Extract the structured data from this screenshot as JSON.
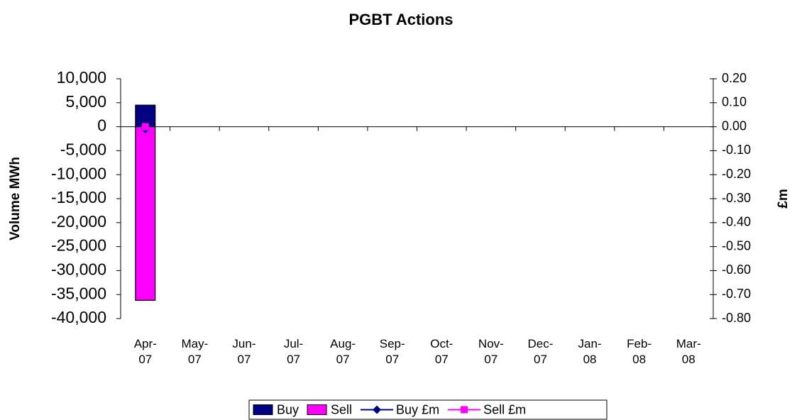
{
  "chart_data": {
    "type": "bar",
    "title": "PGBT Actions",
    "y_label": "Volume MWh",
    "y2_label": "£m",
    "categories": [
      "Apr-07",
      "May-07",
      "Jun-07",
      "Jul-07",
      "Aug-07",
      "Sep-07",
      "Oct-07",
      "Nov-07",
      "Dec-07",
      "Jan-08",
      "Feb-08",
      "Mar-08"
    ],
    "series": [
      {
        "name": "Buy",
        "type": "bar",
        "color": "#000080",
        "values": [
          4500,
          null,
          null,
          null,
          null,
          null,
          null,
          null,
          null,
          null,
          null,
          null
        ]
      },
      {
        "name": "Sell",
        "type": "bar",
        "color": "#ff00ff",
        "values": [
          -36200,
          null,
          null,
          null,
          null,
          null,
          null,
          null,
          null,
          null,
          null,
          null
        ]
      },
      {
        "name": "Buy £m",
        "type": "line",
        "marker": "diamond",
        "axis": "y2",
        "color": "#000080",
        "values": [
          -0.01,
          null,
          null,
          null,
          null,
          null,
          null,
          null,
          null,
          null,
          null,
          null
        ]
      },
      {
        "name": "Sell £m",
        "type": "line",
        "marker": "square",
        "axis": "y2",
        "color": "#ff00ff",
        "values": [
          0.0,
          null,
          null,
          null,
          null,
          null,
          null,
          null,
          null,
          null,
          null,
          null
        ]
      }
    ],
    "ylim": [
      -40000,
      10000
    ],
    "yticks": [
      {
        "value": 10000,
        "label": "10,000"
      },
      {
        "value": 5000,
        "label": "5,000"
      },
      0,
      {
        "value": -5000,
        "label": "-5,000"
      },
      {
        "value": -10000,
        "label": "-10,000"
      },
      {
        "value": -15000,
        "label": "-15,000"
      },
      {
        "value": -20000,
        "label": "-20,000"
      },
      {
        "value": -25000,
        "label": "-25,000"
      },
      {
        "value": -30000,
        "label": "-30,000"
      },
      {
        "value": -35000,
        "label": "-35,000"
      },
      {
        "value": -40000,
        "label": "-40,000"
      }
    ],
    "y2lim": [
      -0.8,
      0.2
    ],
    "y2ticks": [
      {
        "value": 0.2,
        "label": "0.20"
      },
      {
        "value": 0.1,
        "label": "0.10"
      },
      {
        "value": 0,
        "label": "0.00"
      },
      {
        "value": -0.1,
        "label": "-0.10"
      },
      {
        "value": -0.2,
        "label": "-0.20"
      },
      {
        "value": -0.3,
        "label": "-0.30"
      },
      {
        "value": -0.4,
        "label": "-0.40"
      },
      {
        "value": -0.5,
        "label": "-0.50"
      },
      {
        "value": -0.6,
        "label": "-0.60"
      },
      {
        "value": -0.7,
        "label": "-0.70"
      },
      {
        "value": -0.8,
        "label": "-0.80"
      }
    ],
    "legend": "bottom",
    "grid": false
  }
}
